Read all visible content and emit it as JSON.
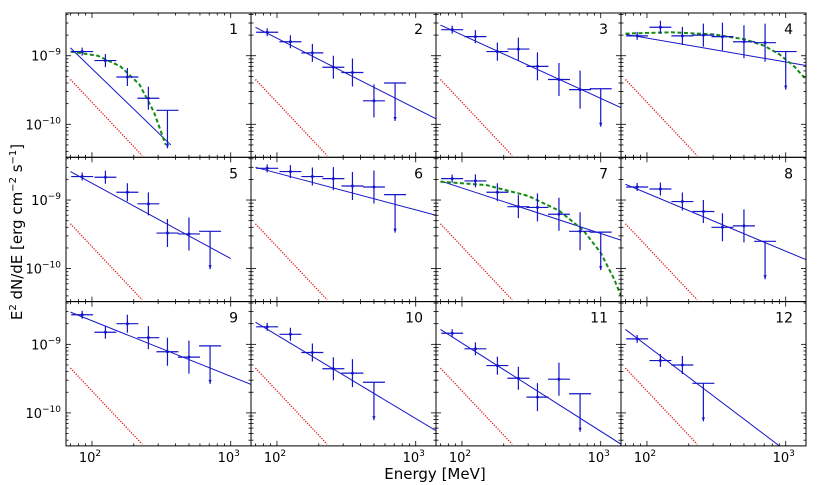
{
  "chart_data": {
    "type": "scatter",
    "panel_grid": {
      "rows": 3,
      "cols": 4
    },
    "xlabel": "Energy [MeV]",
    "ylabel_main": "E",
    "ylabel_sup": "2",
    "ylabel_rest": " dN/dE [erg cm",
    "ylabel_sup2": "−2",
    "ylabel_rest2": " s",
    "ylabel_sup3": "−1",
    "ylabel_end": "]",
    "x_scale": "log",
    "y_scale": "log",
    "xlim": [
      65,
      1400
    ],
    "ylim": [
      3.3e-11,
      4.2e-09
    ],
    "x_ticks": [
      {
        "value": 100,
        "base": "10",
        "exp": "2"
      },
      {
        "value": 1000,
        "base": "10",
        "exp": "3"
      }
    ],
    "y_ticks": [
      {
        "value": 1e-09,
        "base": "10",
        "exp": "−9"
      },
      {
        "value": 1e-10,
        "base": "10",
        "exp": "−10"
      }
    ],
    "colors": {
      "data": "#1515c8",
      "fit_line": "#1515c8",
      "curved_fit": "#148a14",
      "sensitivity": "#e01010"
    },
    "panels": [
      {
        "label": "1",
        "points": [
          [
            85,
            1.15e-09
          ],
          [
            125,
            8.5e-10
          ],
          [
            180,
            4.9e-10
          ],
          [
            255,
            2.4e-10
          ],
          [
            350,
            1.6e-10,
            "ul"
          ]
        ],
        "line": [
          [
            70,
            1.3e-09
          ],
          [
            370,
            5e-11
          ]
        ],
        "curve": [
          [
            70,
            1.15e-09
          ],
          [
            110,
            1e-09
          ],
          [
            160,
            7e-10
          ],
          [
            220,
            3.8e-10
          ],
          [
            280,
            1.5e-10
          ],
          [
            340,
            5e-11
          ]
        ],
        "sens": [
          [
            70,
            4.5e-10
          ],
          [
            230,
            3.5e-11
          ]
        ]
      },
      {
        "label": "2",
        "points": [
          [
            85,
            2.2e-09
          ],
          [
            125,
            1.6e-09
          ],
          [
            180,
            1.1e-09
          ],
          [
            255,
            6.8e-10
          ],
          [
            350,
            5.7e-10
          ],
          [
            500,
            2.2e-10
          ],
          [
            710,
            4e-10,
            "ul"
          ]
        ],
        "line": [
          [
            70,
            2.6e-09
          ],
          [
            1400,
            1.2e-10
          ]
        ],
        "sens": [
          [
            70,
            4.5e-10
          ],
          [
            230,
            3.5e-11
          ]
        ]
      },
      {
        "label": "3",
        "points": [
          [
            85,
            2.4e-09
          ],
          [
            125,
            1.9e-09
          ],
          [
            180,
            1.15e-09
          ],
          [
            255,
            1.25e-09
          ],
          [
            350,
            7e-10
          ],
          [
            500,
            4.5e-10
          ],
          [
            710,
            3.2e-10
          ],
          [
            1000,
            3.3e-10,
            "ul"
          ]
        ],
        "line": [
          [
            70,
            2.8e-09
          ],
          [
            1400,
            1.75e-10
          ]
        ],
        "sens": [
          [
            70,
            4.5e-10
          ],
          [
            230,
            3.5e-11
          ]
        ]
      },
      {
        "label": "4",
        "points": [
          [
            85,
            1.95e-09
          ],
          [
            125,
            2.6e-09
          ],
          [
            180,
            1.95e-09
          ],
          [
            255,
            2e-09
          ],
          [
            350,
            1.9e-09
          ],
          [
            500,
            1.6e-09
          ],
          [
            710,
            1.55e-09
          ],
          [
            1000,
            1.15e-09,
            "ul"
          ]
        ],
        "line": [
          [
            70,
            2.05e-09
          ],
          [
            1400,
            7.2e-10
          ]
        ],
        "curve": [
          [
            70,
            2.1e-09
          ],
          [
            150,
            2.2e-09
          ],
          [
            300,
            2.05e-09
          ],
          [
            500,
            1.75e-09
          ],
          [
            700,
            1.4e-09
          ],
          [
            900,
            1.05e-09
          ],
          [
            1150,
            7e-10
          ],
          [
            1400,
            4.5e-10
          ]
        ],
        "sens": [
          [
            70,
            4.5e-10
          ],
          [
            230,
            3.5e-11
          ]
        ]
      },
      {
        "label": "5",
        "points": [
          [
            85,
            2.2e-09
          ],
          [
            125,
            2.15e-09
          ],
          [
            180,
            1.3e-09
          ],
          [
            255,
            8.8e-10
          ],
          [
            350,
            3.3e-10
          ],
          [
            500,
            3.2e-10
          ],
          [
            710,
            3.5e-10,
            "ul"
          ]
        ],
        "line": [
          [
            70,
            2.6e-09
          ],
          [
            1000,
            1.4e-10
          ]
        ],
        "sens": [
          [
            70,
            4.5e-10
          ],
          [
            230,
            3.5e-11
          ]
        ]
      },
      {
        "label": "6",
        "points": [
          [
            85,
            2.9e-09
          ],
          [
            125,
            2.6e-09
          ],
          [
            180,
            2.2e-09
          ],
          [
            255,
            2.05e-09
          ],
          [
            350,
            1.6e-09
          ],
          [
            500,
            1.55e-09
          ],
          [
            710,
            1.2e-09,
            "ul"
          ]
        ],
        "line": [
          [
            70,
            3e-09
          ],
          [
            1400,
            6e-10
          ]
        ],
        "sens": [
          [
            70,
            4.5e-10
          ],
          [
            230,
            3.5e-11
          ]
        ]
      },
      {
        "label": "7",
        "points": [
          [
            85,
            2.05e-09
          ],
          [
            125,
            1.9e-09
          ],
          [
            180,
            1.3e-09
          ],
          [
            255,
            8e-10
          ],
          [
            350,
            7.8e-10
          ],
          [
            500,
            6.2e-10
          ],
          [
            710,
            3.5e-10
          ],
          [
            1000,
            3.4e-10,
            "ul"
          ]
        ],
        "line": [
          [
            70,
            1.9e-09
          ],
          [
            1400,
            2.6e-10
          ]
        ],
        "curve": [
          [
            70,
            1.85e-09
          ],
          [
            150,
            1.65e-09
          ],
          [
            300,
            1.15e-09
          ],
          [
            500,
            7e-10
          ],
          [
            750,
            3.6e-10
          ],
          [
            1000,
            1.7e-10
          ],
          [
            1250,
            7e-11
          ],
          [
            1400,
            4e-11
          ]
        ],
        "sens": [
          [
            70,
            4.5e-10
          ],
          [
            230,
            3.5e-11
          ]
        ]
      },
      {
        "label": "8",
        "points": [
          [
            85,
            1.55e-09
          ],
          [
            125,
            1.45e-09
          ],
          [
            180,
            9.5e-10
          ],
          [
            255,
            6.8e-10
          ],
          [
            350,
            4e-10
          ],
          [
            500,
            4.2e-10
          ],
          [
            710,
            2.5e-10,
            "ul"
          ]
        ],
        "line": [
          [
            70,
            1.7e-09
          ],
          [
            1400,
            1.35e-10
          ]
        ],
        "sens": [
          [
            70,
            4.5e-10
          ],
          [
            230,
            3.5e-11
          ]
        ]
      },
      {
        "label": "9",
        "points": [
          [
            85,
            2.7e-09
          ],
          [
            125,
            1.5e-09
          ],
          [
            180,
            2e-09
          ],
          [
            255,
            1.25e-09
          ],
          [
            350,
            7.8e-10
          ],
          [
            500,
            6.5e-10
          ],
          [
            710,
            9.5e-10,
            "ul"
          ]
        ],
        "line": [
          [
            70,
            2.95e-09
          ],
          [
            1400,
            2.6e-10
          ]
        ],
        "sens": [
          [
            70,
            4.5e-10
          ],
          [
            230,
            3.5e-11
          ]
        ]
      },
      {
        "label": "10",
        "points": [
          [
            85,
            1.8e-09
          ],
          [
            125,
            1.4e-09
          ],
          [
            180,
            7.6e-10
          ],
          [
            255,
            4.4e-10
          ],
          [
            350,
            3.8e-10
          ],
          [
            500,
            2.8e-10,
            "ul"
          ]
        ],
        "line": [
          [
            70,
            2.1e-09
          ],
          [
            1400,
            5.5e-11
          ]
        ],
        "sens": [
          [
            70,
            4.5e-10
          ],
          [
            230,
            3.5e-11
          ]
        ]
      },
      {
        "label": "11",
        "points": [
          [
            85,
            1.45e-09
          ],
          [
            125,
            8.6e-10
          ],
          [
            180,
            4.9e-10
          ],
          [
            255,
            3.2e-10
          ],
          [
            350,
            1.7e-10
          ],
          [
            500,
            3.1e-10
          ],
          [
            710,
            1.9e-10,
            "ul"
          ]
        ],
        "line": [
          [
            70,
            1.65e-09
          ],
          [
            1400,
            3.5e-11
          ]
        ],
        "sens": [
          [
            70,
            4.5e-10
          ],
          [
            230,
            3.5e-11
          ]
        ]
      },
      {
        "label": "12",
        "points": [
          [
            85,
            1.2e-09
          ],
          [
            125,
            5.8e-10
          ],
          [
            180,
            5e-10
          ],
          [
            255,
            2.7e-10,
            "ul"
          ]
        ],
        "line": [
          [
            70,
            1.65e-09
          ],
          [
            900,
            3.3e-11
          ]
        ],
        "sens": [
          [
            70,
            4.5e-10
          ],
          [
            230,
            3.5e-11
          ]
        ]
      }
    ]
  }
}
